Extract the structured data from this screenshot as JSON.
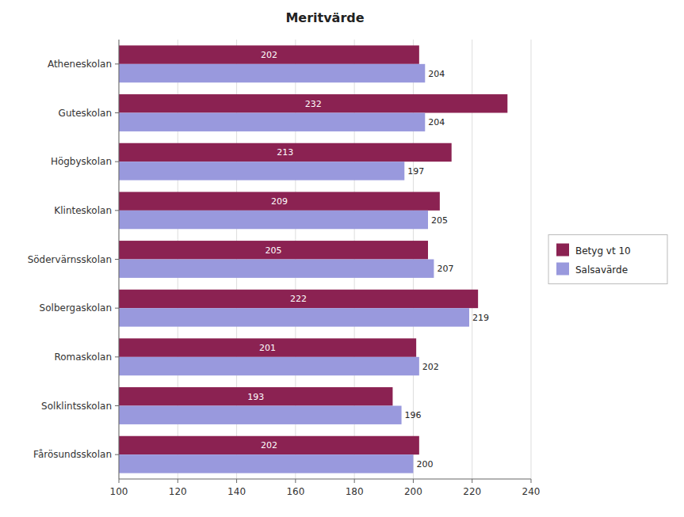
{
  "chart_data": {
    "type": "bar",
    "orientation": "horizontal",
    "title": "Meritvärde",
    "categories": [
      "Fårösundsskolan",
      "Solklintsskolan",
      "Romaskolan",
      "Solbergaskolan",
      "Södervärnsskolan",
      "Klinteskolan",
      "Högbyskolan",
      "Guteskolan",
      "Atheneskolan"
    ],
    "series": [
      {
        "name": "Betyg vt 10",
        "color": "#8B2252",
        "values": [
          202,
          193,
          201,
          222,
          205,
          209,
          213,
          232,
          202
        ]
      },
      {
        "name": "Salsavärde",
        "color": "#9999DD",
        "values": [
          200,
          196,
          202,
          219,
          207,
          205,
          197,
          204,
          204
        ]
      }
    ],
    "xlim": [
      100,
      240
    ],
    "xticks": [
      100,
      120,
      140,
      160,
      180,
      200,
      220,
      240
    ],
    "grid": true,
    "legend": "right",
    "data_labels": true
  }
}
